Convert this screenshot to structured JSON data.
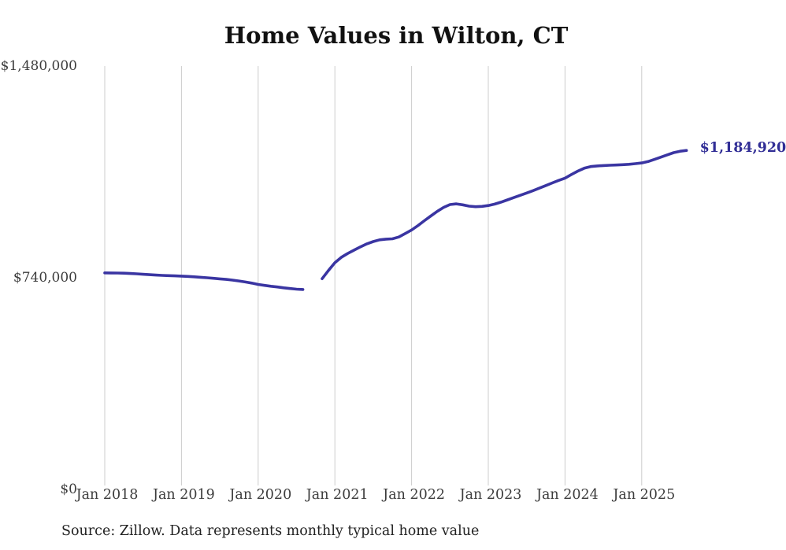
{
  "chart_data": {
    "type": "line",
    "title": "Home Values in Wilton, CT",
    "series_name": "Monthly typical home value",
    "source": "Source: Zillow. Data represents monthly typical home value",
    "start_month": "2018-01",
    "frequency": "monthly",
    "x_ticks": [
      "Jan 2018",
      "Jan 2019",
      "Jan 2020",
      "Jan 2021",
      "Jan 2022",
      "Jan 2023",
      "Jan 2024",
      "Jan 2025"
    ],
    "y_ticks": [
      {
        "value": 0,
        "label": "$0"
      },
      {
        "value": 740000,
        "label": "$740,000"
      },
      {
        "value": 1480000,
        "label": "$1,480,000"
      }
    ],
    "ylim": [
      0,
      1480000
    ],
    "grid": "vertical-only",
    "data_gap_months": [
      "2020-09",
      "2020-10"
    ],
    "last_point": {
      "month": "2025-08",
      "value": 1184920,
      "label": "$1,184,920"
    },
    "values_usd": [
      756500,
      756200,
      755800,
      755200,
      754200,
      753000,
      751500,
      750000,
      748800,
      747600,
      746800,
      746000,
      745200,
      744000,
      742500,
      741000,
      739200,
      737500,
      735500,
      733500,
      731000,
      728000,
      724500,
      720500,
      716000,
      712500,
      709500,
      707000,
      704000,
      701500,
      699500,
      698200,
      null,
      null,
      736000,
      765000,
      792000,
      810500,
      824000,
      836000,
      847500,
      858000,
      866000,
      872000,
      874500,
      875500,
      882000,
      894000,
      906500,
      922000,
      939000,
      955500,
      971500,
      985500,
      995500,
      998000,
      994500,
      990000,
      988000,
      989000,
      992000,
      997000,
      1004000,
      1012000,
      1020000,
      1028000,
      1036000,
      1044000,
      1053000,
      1062000,
      1071000,
      1080000,
      1088000,
      1100500,
      1112500,
      1122500,
      1128500,
      1130500,
      1132000,
      1133000,
      1134000,
      1135000,
      1136500,
      1138500,
      1141000,
      1146000,
      1153500,
      1161500,
      1169500,
      1177000,
      1182000,
      1184920
    ],
    "colors": {
      "line": "#3a35a2",
      "end_label": "#312e96",
      "gridline": "#cccccc",
      "tick_text": "#3c3c3c",
      "title_text": "#111111"
    },
    "legend": "none"
  }
}
